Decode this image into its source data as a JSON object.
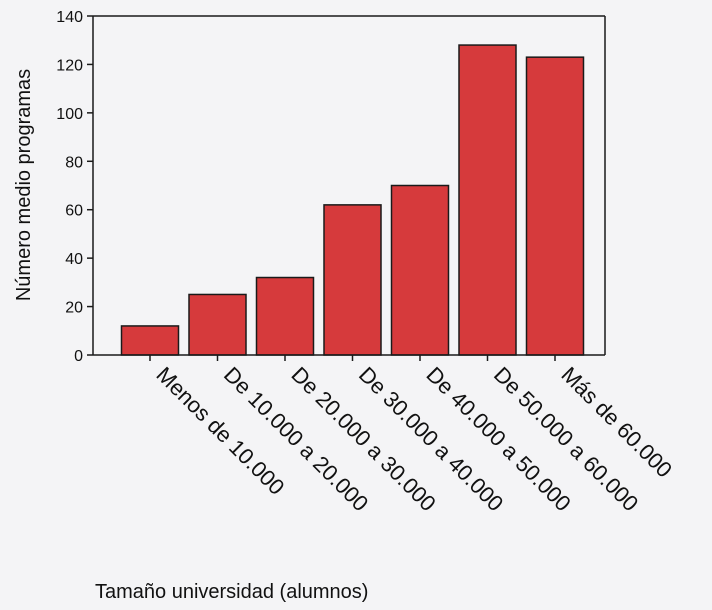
{
  "chart_data": {
    "type": "bar",
    "categories": [
      "Menos de 10.000",
      "De 10.000 a 20.000",
      "De 20.000 a 30.000",
      "De 30.000 a 40.000",
      "De 40.000 a 50.000",
      "De 50.000 a 60.000",
      "Más de 60.000"
    ],
    "values": [
      12,
      25,
      32,
      62,
      70,
      128,
      123
    ],
    "title": "",
    "xlabel": "Tamaño universidad (alumnos)",
    "ylabel": "Número medio programas",
    "ylim": [
      0,
      140
    ],
    "yticks": [
      "0",
      "20",
      "40",
      "60",
      "80",
      "100",
      "120",
      "140"
    ],
    "bar_color": "#d63a3c",
    "grid": false,
    "legend": "none"
  }
}
